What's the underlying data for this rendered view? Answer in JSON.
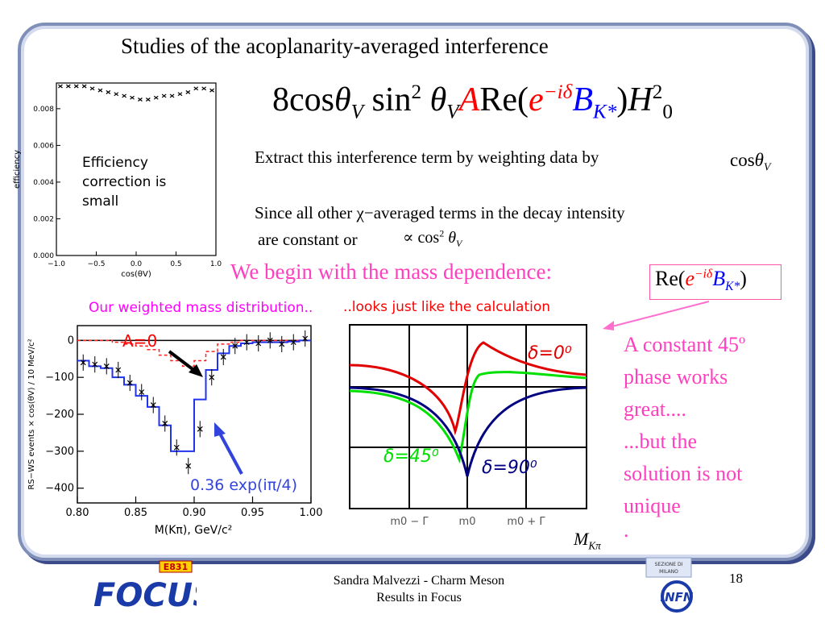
{
  "slide": {
    "title": "Studies of the acoplanarity-averaged interference",
    "formula": {
      "prefix": "8",
      "cos": "cos",
      "theta": "θ",
      "v": "V",
      "sin": " sin",
      "sup2": "2",
      "a": "A",
      "re": "Re(",
      "e": "e",
      "exp": "−iδ",
      "b": "B",
      "kstar": "K*",
      "close": ")",
      "h": "H",
      "h_sub": "0"
    },
    "extract_text": "Extract this interference term by weighting data by",
    "extract_math": {
      "cos": "cos",
      "theta": "θ",
      "v": "V"
    },
    "since_line1": "Since all other χ−averaged terms in the decay intensity",
    "since_line2": "are constant or",
    "since_math": {
      "prop": "∝",
      "cos": "cos",
      "sup": "2",
      "theta": "θ",
      "v": "V"
    },
    "begin_text": "We begin with the mass dependence:",
    "box_math": {
      "re": "Re(",
      "e": "e",
      "exp": "−iδ",
      "b": "B",
      "kstar": "K*",
      "close": ")"
    },
    "right_text": [
      "A constant 45º",
      "phase works",
      "great....",
      "...but the",
      "solution is not",
      "unique",
      "."
    ],
    "mkpi": {
      "m": "M",
      "sub": "Kπ"
    },
    "footer_line1": "Sandra Malvezzi - Charm Meson",
    "footer_line2": "Results  in Focus",
    "page_number": "18",
    "focus_logo": {
      "badge": "E831",
      "word": "FOCUS"
    },
    "infn_logo": {
      "word": "INFN",
      "small1": "SEZIONE DI",
      "small2": "MILANO"
    }
  },
  "chart_data": [
    {
      "type": "scatter",
      "title": "",
      "xlabel": "cos(θV)",
      "ylabel": "efficiency",
      "xlim": [
        -1.0,
        1.0
      ],
      "ylim": [
        0.0,
        0.0094
      ],
      "xticks": [
        "−1.0",
        "−0.5",
        "0.0",
        "0.5",
        "1.0"
      ],
      "yticks": [
        "0.000",
        "0.002",
        "0.004",
        "0.006",
        "0.008"
      ],
      "annotation": [
        "Efficiency",
        "correction is",
        "small"
      ],
      "x": [
        -0.95,
        -0.85,
        -0.75,
        -0.65,
        -0.55,
        -0.45,
        -0.35,
        -0.25,
        -0.15,
        -0.05,
        0.05,
        0.15,
        0.25,
        0.35,
        0.45,
        0.55,
        0.65,
        0.75,
        0.85,
        0.95
      ],
      "y": [
        0.0097,
        0.0096,
        0.0095,
        0.0093,
        0.0091,
        0.009,
        0.0089,
        0.0088,
        0.0087,
        0.0086,
        0.0085,
        0.0085,
        0.0086,
        0.0087,
        0.0087,
        0.0088,
        0.0089,
        0.0091,
        0.0091,
        0.009
      ]
    },
    {
      "type": "line",
      "caption": "Our weighted mass distribution..",
      "xlabel": "M(Kπ), GeV/c²",
      "ylabel": "RS−WS events × cos(θV) / 10 MeV/c²",
      "xlim": [
        0.8,
        1.0
      ],
      "ylim": [
        -440,
        40
      ],
      "xticks": [
        "0.80",
        "0.85",
        "0.90",
        "0.95",
        "1.00"
      ],
      "yticks": [
        "0",
        "−100",
        "−200",
        "−300",
        "−400"
      ],
      "label_a0": "A=0",
      "label_exp": "0.36 exp(iπ/4)",
      "data_x": [
        0.805,
        0.815,
        0.825,
        0.835,
        0.845,
        0.855,
        0.865,
        0.875,
        0.885,
        0.895,
        0.905,
        0.915,
        0.925,
        0.935,
        0.945,
        0.955,
        0.965,
        0.975,
        0.985,
        0.995
      ],
      "data_y": [
        -60,
        -65,
        -70,
        -80,
        -115,
        -140,
        -175,
        -225,
        -290,
        -340,
        -240,
        -100,
        -45,
        -15,
        -5,
        -8,
        0,
        -10,
        -5,
        5
      ],
      "fit_y": [
        -55,
        -70,
        -75,
        -100,
        -120,
        -150,
        -180,
        -230,
        -300,
        -300,
        -160,
        -80,
        -35,
        -15,
        -8,
        -5,
        -5,
        -5,
        -3,
        0
      ],
      "a0_y": [
        0,
        0,
        0,
        -5,
        -10,
        -15,
        -25,
        -40,
        -55,
        -70,
        -55,
        -30,
        -10,
        -5,
        0,
        0,
        0,
        0,
        0,
        0
      ]
    },
    {
      "type": "line",
      "caption": "..looks just like the calculation",
      "xticks": [
        "m0 − Γ",
        "m0",
        "m0 + Γ"
      ],
      "series": [
        {
          "name": "δ=0⁰",
          "color": "#e00000"
        },
        {
          "name": "δ=45⁰",
          "color": "#00e000"
        },
        {
          "name": "δ=90⁰",
          "color": "#000080"
        }
      ]
    }
  ]
}
